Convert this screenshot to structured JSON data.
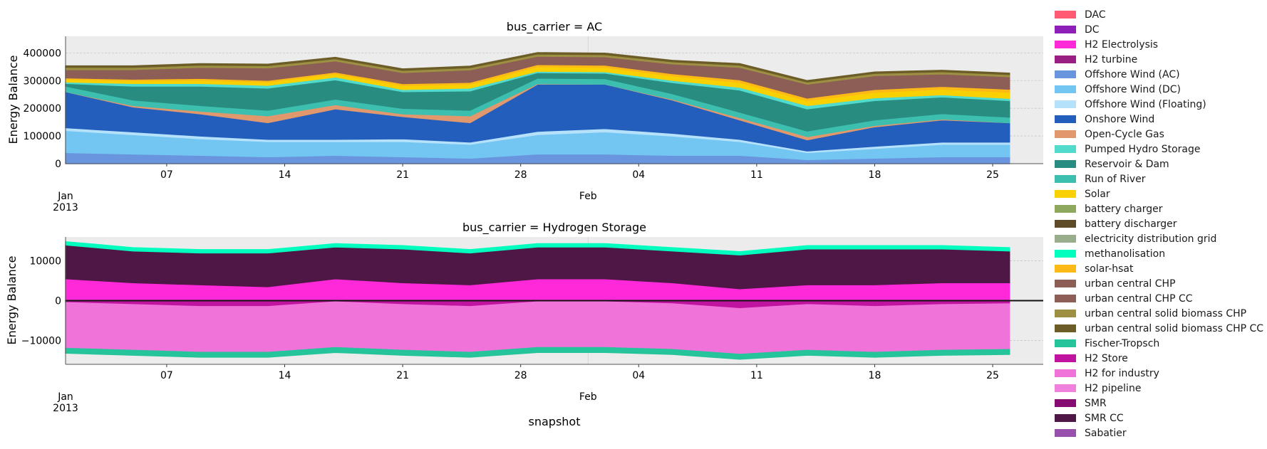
{
  "chart_data": [
    {
      "type": "area",
      "title": "bus_carrier = AC",
      "ylabel": "Energy Balance",
      "ylim": [
        0,
        460000
      ],
      "yticks": [
        0,
        100000,
        200000,
        300000,
        400000
      ],
      "ytick_labels": [
        "0",
        "100000",
        "200000",
        "300000",
        "400000"
      ],
      "x_range": [
        "2013-01-01",
        "2013-02-28"
      ],
      "xtick_major": [
        {
          "x": "2013-01-01",
          "label": "Jan",
          "sublabel": "2013"
        },
        {
          "x": "2013-02-01",
          "label": "Feb",
          "sublabel": ""
        }
      ],
      "xtick_minor": [
        {
          "x": "2013-01-07",
          "label": "07"
        },
        {
          "x": "2013-01-14",
          "label": "14"
        },
        {
          "x": "2013-01-21",
          "label": "21"
        },
        {
          "x": "2013-01-28",
          "label": "28"
        },
        {
          "x": "2013-02-04",
          "label": "04"
        },
        {
          "x": "2013-02-11",
          "label": "11"
        },
        {
          "x": "2013-02-18",
          "label": "18"
        },
        {
          "x": "2013-02-25",
          "label": "25"
        }
      ],
      "grid": true,
      "x": [
        "2013-01-01",
        "2013-01-05",
        "2013-01-09",
        "2013-01-13",
        "2013-01-17",
        "2013-01-21",
        "2013-01-25",
        "2013-01-29",
        "2013-02-02",
        "2013-02-06",
        "2013-02-10",
        "2013-02-14",
        "2013-02-18",
        "2013-02-22",
        "2013-02-26"
      ],
      "series": [
        {
          "name": "Offshore Wind (AC)",
          "values": [
            40000,
            35000,
            30000,
            25000,
            30000,
            25000,
            20000,
            35000,
            35000,
            30000,
            30000,
            15000,
            20000,
            25000,
            25000
          ]
        },
        {
          "name": "Offshore Wind (DC)",
          "values": [
            80000,
            70000,
            60000,
            55000,
            50000,
            55000,
            50000,
            70000,
            80000,
            70000,
            50000,
            25000,
            35000,
            45000,
            45000
          ]
        },
        {
          "name": "Offshore Wind (Floating)",
          "values": [
            10000,
            10000,
            10000,
            8000,
            8000,
            10000,
            8000,
            12000,
            12000,
            10000,
            8000,
            6000,
            8000,
            8000,
            8000
          ]
        },
        {
          "name": "Onshore Wind",
          "values": [
            130000,
            90000,
            80000,
            60000,
            110000,
            80000,
            70000,
            170000,
            160000,
            120000,
            70000,
            40000,
            70000,
            80000,
            70000
          ]
        },
        {
          "name": "Open-Cycle Gas",
          "values": [
            0,
            5000,
            10000,
            25000,
            15000,
            10000,
            25000,
            2000,
            0,
            3000,
            8000,
            12000,
            5000,
            3000,
            0
          ]
        },
        {
          "name": "Run of River",
          "values": [
            20000,
            20000,
            20000,
            20000,
            20000,
            20000,
            20000,
            20000,
            20000,
            20000,
            20000,
            20000,
            20000,
            20000,
            20000
          ]
        },
        {
          "name": "Reservoir & Dam",
          "values": [
            10000,
            50000,
            70000,
            80000,
            70000,
            60000,
            70000,
            20000,
            20000,
            40000,
            80000,
            80000,
            70000,
            60000,
            60000
          ]
        },
        {
          "name": "Pumped Hydro Storage",
          "values": [
            5000,
            10000,
            10000,
            10000,
            10000,
            8000,
            10000,
            5000,
            5000,
            8000,
            10000,
            12000,
            10000,
            8000,
            8000
          ]
        },
        {
          "name": "Solar",
          "values": [
            10000,
            10000,
            12000,
            12000,
            12000,
            14000,
            14000,
            16000,
            16000,
            16000,
            18000,
            18000,
            20000,
            20000,
            22000
          ]
        },
        {
          "name": "solar-hsat",
          "values": [
            5000,
            5000,
            6000,
            6000,
            6000,
            7000,
            7000,
            8000,
            8000,
            8000,
            9000,
            9000,
            10000,
            10000,
            11000
          ]
        },
        {
          "name": "urban central CHP",
          "values": [
            30000,
            35000,
            40000,
            45000,
            40000,
            40000,
            45000,
            30000,
            30000,
            35000,
            45000,
            50000,
            50000,
            45000,
            45000
          ]
        },
        {
          "name": "urban central solid biomass CHP",
          "values": [
            8000,
            8000,
            8000,
            8000,
            8000,
            8000,
            8000,
            8000,
            8000,
            8000,
            8000,
            8000,
            8000,
            8000,
            8000
          ]
        },
        {
          "name": "urban central solid biomass CHP CC",
          "values": [
            5000,
            5000,
            5000,
            5000,
            5000,
            5000,
            5000,
            5000,
            5000,
            5000,
            5000,
            5000,
            5000,
            5000,
            5000
          ]
        }
      ]
    },
    {
      "type": "area",
      "title": "bus_carrier = Hydrogen Storage",
      "xlabel": "snapshot",
      "ylabel": "Energy Balance",
      "ylim": [
        -16000,
        16000
      ],
      "yticks": [
        -10000,
        0,
        10000
      ],
      "ytick_labels": [
        "−10000",
        "0",
        "10000"
      ],
      "x_range": [
        "2013-01-01",
        "2013-02-28"
      ],
      "xtick_major": [
        {
          "x": "2013-01-01",
          "label": "Jan",
          "sublabel": "2013"
        },
        {
          "x": "2013-02-01",
          "label": "Feb",
          "sublabel": ""
        }
      ],
      "xtick_minor": [
        {
          "x": "2013-01-07",
          "label": "07"
        },
        {
          "x": "2013-01-14",
          "label": "14"
        },
        {
          "x": "2013-01-21",
          "label": "21"
        },
        {
          "x": "2013-01-28",
          "label": "28"
        },
        {
          "x": "2013-02-04",
          "label": "04"
        },
        {
          "x": "2013-02-11",
          "label": "11"
        },
        {
          "x": "2013-02-18",
          "label": "18"
        },
        {
          "x": "2013-02-25",
          "label": "25"
        }
      ],
      "grid": true,
      "x": [
        "2013-01-01",
        "2013-01-05",
        "2013-01-09",
        "2013-01-13",
        "2013-01-17",
        "2013-01-21",
        "2013-01-25",
        "2013-01-29",
        "2013-02-02",
        "2013-02-06",
        "2013-02-10",
        "2013-02-14",
        "2013-02-18",
        "2013-02-22",
        "2013-02-26"
      ],
      "series": [
        {
          "name": "H2 Electrolysis",
          "values": [
            5500,
            4500,
            4000,
            3500,
            5500,
            4500,
            4000,
            5500,
            5500,
            4500,
            3000,
            4000,
            4000,
            4500,
            4500
          ]
        },
        {
          "name": "SMR CC",
          "values": [
            8500,
            8000,
            8000,
            8500,
            8000,
            8500,
            8000,
            8000,
            8000,
            8000,
            8500,
            9000,
            9000,
            8500,
            8000
          ]
        },
        {
          "name": "methanolisation",
          "values": [
            800,
            800,
            800,
            800,
            800,
            800,
            800,
            800,
            800,
            800,
            800,
            800,
            800,
            800,
            800
          ]
        },
        {
          "name": "H2 Store",
          "values": [
            -500,
            -1000,
            -1500,
            -1500,
            -300,
            -1000,
            -1500,
            -300,
            -300,
            -800,
            -2000,
            -1000,
            -1500,
            -1000,
            -800
          ]
        },
        {
          "name": "H2 for industry",
          "values": [
            -11500,
            -11500,
            -11500,
            -11500,
            -11500,
            -11500,
            -11500,
            -11500,
            -11500,
            -11500,
            -11500,
            -11500,
            -11500,
            -11500,
            -11500
          ]
        },
        {
          "name": "Fischer-Tropsch",
          "values": [
            -1200,
            -1200,
            -1200,
            -1200,
            -1200,
            -1200,
            -1200,
            -1200,
            -1200,
            -1200,
            -1200,
            -1200,
            -1200,
            -1200,
            -1200
          ]
        }
      ]
    }
  ],
  "legend": {
    "placement": "right",
    "entries": [
      {
        "name": "DAC",
        "color": "#ff5b72"
      },
      {
        "name": "DC",
        "color": "#8d1fb8"
      },
      {
        "name": "H2 Electrolysis",
        "color": "#ff29d9"
      },
      {
        "name": "H2 turbine",
        "color": "#991f83"
      },
      {
        "name": "Offshore Wind (AC)",
        "color": "#6895dd"
      },
      {
        "name": "Offshore Wind (DC)",
        "color": "#74c6f2"
      },
      {
        "name": "Offshore Wind (Floating)",
        "color": "#b5e2fa"
      },
      {
        "name": "Onshore Wind",
        "color": "#235ebc"
      },
      {
        "name": "Open-Cycle Gas",
        "color": "#e0986c"
      },
      {
        "name": "Pumped Hydro Storage",
        "color": "#51dbcc"
      },
      {
        "name": "Reservoir & Dam",
        "color": "#298c81"
      },
      {
        "name": "Run of River",
        "color": "#3dbfb0"
      },
      {
        "name": "Solar",
        "color": "#f9d002"
      },
      {
        "name": "battery charger",
        "color": "#8ea85e"
      },
      {
        "name": "battery discharger",
        "color": "#5e4b27"
      },
      {
        "name": "electricity distribution grid",
        "color": "#97ad8c"
      },
      {
        "name": "methanolisation",
        "color": "#00ffbf"
      },
      {
        "name": "solar-hsat",
        "color": "#fdb915"
      },
      {
        "name": "urban central CHP",
        "color": "#8d5e56"
      },
      {
        "name": "urban central CHP CC",
        "color": "#8d5e56"
      },
      {
        "name": "urban central solid biomass CHP",
        "color": "#9d9042"
      },
      {
        "name": "urban central solid biomass CHP CC",
        "color": "#6c5d28"
      },
      {
        "name": "Fischer-Tropsch",
        "color": "#25c49a"
      },
      {
        "name": "H2 Store",
        "color": "#bf13a0"
      },
      {
        "name": "H2 for industry",
        "color": "#f073da"
      },
      {
        "name": "H2 pipeline",
        "color": "#f081dc"
      },
      {
        "name": "SMR",
        "color": "#870c71"
      },
      {
        "name": "SMR CC",
        "color": "#4f1745"
      },
      {
        "name": "Sabatier",
        "color": "#9850ad"
      }
    ]
  }
}
